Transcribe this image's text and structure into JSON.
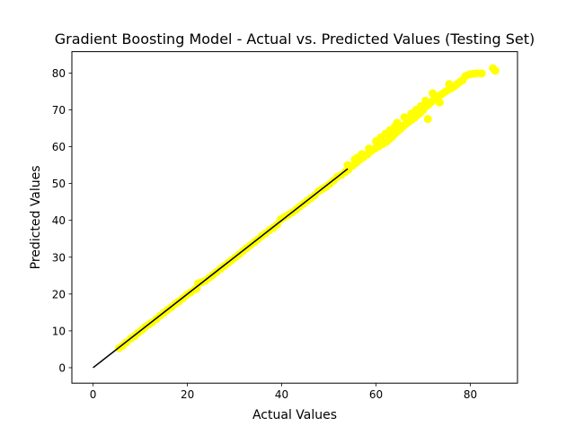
{
  "chart_data": {
    "type": "scatter",
    "title": "Gradient Boosting Model - Actual vs. Predicted Values (Testing Set)",
    "xlabel": "Actual Values",
    "ylabel": "Predicted Values",
    "xlim": [
      -4.5,
      90
    ],
    "ylim": [
      -4.2,
      85.8
    ],
    "xticks": [
      0,
      20,
      40,
      60,
      80
    ],
    "yticks": [
      0,
      10,
      20,
      30,
      40,
      50,
      60,
      70,
      80
    ],
    "grid": false,
    "legend": "none",
    "points": [
      [
        5.5,
        5.3
      ],
      [
        6.2,
        5.9
      ],
      [
        7.0,
        6.8
      ],
      [
        8.0,
        7.9
      ],
      [
        8.8,
        8.6
      ],
      [
        9.5,
        9.4
      ],
      [
        10.3,
        10.2
      ],
      [
        11.0,
        11.0
      ],
      [
        11.8,
        11.7
      ],
      [
        12.5,
        12.3
      ],
      [
        13.4,
        13.2
      ],
      [
        14.2,
        14.1
      ],
      [
        15.0,
        14.9
      ],
      [
        15.8,
        15.7
      ],
      [
        16.6,
        16.4
      ],
      [
        17.4,
        17.3
      ],
      [
        18.2,
        18.0
      ],
      [
        19.0,
        18.8
      ],
      [
        19.8,
        19.7
      ],
      [
        20.6,
        20.4
      ],
      [
        21.5,
        21.2
      ],
      [
        22.0,
        21.6
      ],
      [
        22.3,
        22.9
      ],
      [
        23.0,
        23.2
      ],
      [
        23.8,
        23.6
      ],
      [
        24.6,
        24.4
      ],
      [
        25.4,
        25.2
      ],
      [
        26.2,
        26.0
      ],
      [
        27.0,
        26.8
      ],
      [
        27.8,
        27.6
      ],
      [
        28.6,
        28.4
      ],
      [
        29.4,
        29.2
      ],
      [
        30.2,
        30.0
      ],
      [
        31.0,
        30.8
      ],
      [
        31.8,
        31.7
      ],
      [
        32.6,
        32.5
      ],
      [
        33.4,
        33.3
      ],
      [
        34.2,
        34.1
      ],
      [
        35.0,
        34.9
      ],
      [
        35.8,
        35.8
      ],
      [
        36.6,
        36.5
      ],
      [
        37.4,
        37.3
      ],
      [
        38.2,
        38.0
      ],
      [
        39.0,
        38.8
      ],
      [
        39.8,
        40.3
      ],
      [
        40.6,
        40.9
      ],
      [
        41.4,
        41.5
      ],
      [
        42.2,
        42.1
      ],
      [
        43.0,
        42.9
      ],
      [
        43.8,
        43.7
      ],
      [
        44.6,
        44.5
      ],
      [
        45.4,
        45.3
      ],
      [
        46.2,
        46.0
      ],
      [
        47.0,
        46.8
      ],
      [
        47.8,
        47.9
      ],
      [
        48.6,
        48.5
      ],
      [
        49.4,
        49.1
      ],
      [
        50.2,
        49.9
      ],
      [
        51.0,
        50.8
      ],
      [
        51.8,
        51.8
      ],
      [
        52.6,
        52.3
      ],
      [
        53.4,
        53.1
      ],
      [
        54.2,
        53.8
      ],
      [
        55.0,
        54.8
      ],
      [
        55.8,
        55.6
      ],
      [
        56.6,
        56.5
      ],
      [
        57.4,
        57.2
      ],
      [
        58.2,
        57.9
      ],
      [
        59.0,
        58.8
      ],
      [
        59.8,
        59.5
      ],
      [
        60.6,
        60.1
      ],
      [
        61.4,
        60.7
      ],
      [
        62.2,
        61.3
      ],
      [
        62.8,
        62.0
      ],
      [
        63.4,
        62.6
      ],
      [
        64.0,
        63.5
      ],
      [
        64.6,
        64.2
      ],
      [
        65.2,
        64.8
      ],
      [
        65.8,
        65.6
      ],
      [
        66.4,
        66.2
      ],
      [
        67.0,
        66.8
      ],
      [
        67.6,
        67.3
      ],
      [
        68.2,
        67.9
      ],
      [
        68.8,
        68.6
      ],
      [
        69.4,
        69.2
      ],
      [
        70.0,
        70.0
      ],
      [
        70.6,
        70.9
      ],
      [
        71.2,
        71.5
      ],
      [
        71.8,
        72.2
      ],
      [
        72.4,
        72.9
      ],
      [
        73.0,
        73.5
      ],
      [
        73.6,
        74.0
      ],
      [
        74.2,
        74.5
      ],
      [
        74.8,
        75.0
      ],
      [
        75.4,
        75.5
      ],
      [
        76.0,
        75.9
      ],
      [
        76.6,
        76.4
      ],
      [
        77.2,
        77.0
      ],
      [
        77.8,
        77.6
      ],
      [
        78.4,
        78.1
      ],
      [
        79.0,
        79.2
      ],
      [
        79.8,
        79.6
      ],
      [
        80.6,
        79.8
      ],
      [
        81.4,
        79.9
      ],
      [
        82.4,
        79.9
      ],
      [
        84.8,
        81.3
      ],
      [
        85.3,
        80.6
      ],
      [
        71.0,
        67.5
      ],
      [
        64.5,
        66.5
      ],
      [
        62.0,
        63.5
      ],
      [
        66.0,
        68.0
      ],
      [
        68.5,
        70.0
      ],
      [
        72.0,
        74.5
      ],
      [
        73.5,
        72.0
      ],
      [
        60.0,
        61.5
      ],
      [
        57.0,
        58.0
      ],
      [
        75.5,
        77.0
      ],
      [
        69.5,
        71.0
      ],
      [
        63.0,
        64.5
      ],
      [
        61.0,
        62.5
      ],
      [
        58.5,
        59.5
      ],
      [
        56.0,
        57.0
      ],
      [
        55.5,
        56.5
      ],
      [
        54.0,
        55.0
      ],
      [
        66.5,
        67.8
      ],
      [
        67.5,
        69.0
      ],
      [
        70.5,
        72.5
      ],
      [
        64.0,
        65.5
      ]
    ],
    "reference_line": {
      "x": [
        0,
        54
      ],
      "y": [
        0,
        54
      ],
      "color": "#000000"
    },
    "point_color": "#ffff00"
  }
}
